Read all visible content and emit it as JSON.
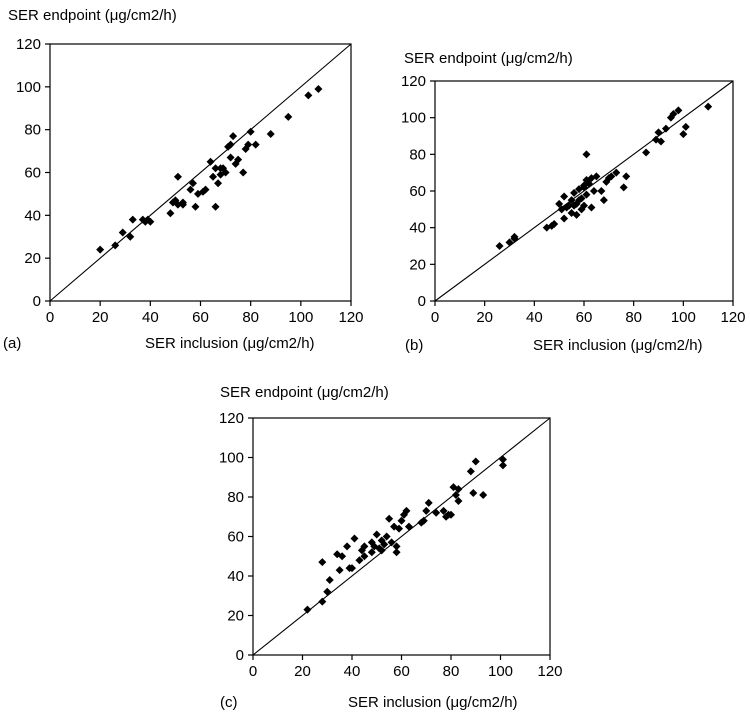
{
  "chart_data": [
    {
      "type": "scatter",
      "panel_label": "(a)",
      "ylabel": "SER endpoint (μg/cm2/h)",
      "xlabel": "SER inclusion (μg/cm2/h)",
      "xlim": [
        0,
        120
      ],
      "ylim": [
        0,
        120
      ],
      "xticks": [
        "0",
        "20",
        "40",
        "60",
        "80",
        "100",
        "120"
      ],
      "yticks": [
        "0",
        "20",
        "40",
        "60",
        "80",
        "100",
        "120"
      ],
      "grid": false,
      "identity_line": true,
      "points": [
        [
          20,
          24
        ],
        [
          26,
          26
        ],
        [
          29,
          32
        ],
        [
          32,
          30
        ],
        [
          33,
          38
        ],
        [
          37,
          38
        ],
        [
          38,
          37
        ],
        [
          39,
          38
        ],
        [
          40,
          37
        ],
        [
          48,
          41
        ],
        [
          49,
          46
        ],
        [
          50,
          47
        ],
        [
          51,
          45
        ],
        [
          51,
          58
        ],
        [
          53,
          46
        ],
        [
          53,
          45
        ],
        [
          56,
          52
        ],
        [
          57,
          55
        ],
        [
          58,
          44
        ],
        [
          59,
          50
        ],
        [
          61,
          51
        ],
        [
          62,
          52
        ],
        [
          64,
          65
        ],
        [
          65,
          58
        ],
        [
          66,
          44
        ],
        [
          66,
          62
        ],
        [
          67,
          55
        ],
        [
          68,
          62
        ],
        [
          68,
          59
        ],
        [
          69,
          62
        ],
        [
          70,
          60
        ],
        [
          71,
          72
        ],
        [
          72,
          73
        ],
        [
          72,
          67
        ],
        [
          73,
          77
        ],
        [
          74,
          64
        ],
        [
          75,
          66
        ],
        [
          77,
          60
        ],
        [
          78,
          71
        ],
        [
          79,
          73
        ],
        [
          80,
          79
        ],
        [
          82,
          73
        ],
        [
          88,
          78
        ],
        [
          95,
          86
        ],
        [
          103,
          96
        ],
        [
          107,
          99
        ]
      ]
    },
    {
      "type": "scatter",
      "panel_label": "(b)",
      "ylabel": "SER endpoint (μg/cm2/h)",
      "xlabel": "SER inclusion (μg/cm2/h)",
      "xlim": [
        0,
        120
      ],
      "ylim": [
        0,
        120
      ],
      "xticks": [
        "0",
        "20",
        "40",
        "60",
        "80",
        "100",
        "120"
      ],
      "yticks": [
        "0",
        "20",
        "40",
        "60",
        "80",
        "100",
        "120"
      ],
      "grid": false,
      "identity_line": true,
      "points": [
        [
          26,
          30
        ],
        [
          30,
          32
        ],
        [
          32,
          34
        ],
        [
          32,
          35
        ],
        [
          45,
          40
        ],
        [
          47,
          41
        ],
        [
          48,
          42
        ],
        [
          50,
          53
        ],
        [
          51,
          50
        ],
        [
          52,
          45
        ],
        [
          52,
          57
        ],
        [
          53,
          51
        ],
        [
          54,
          52
        ],
        [
          55,
          48
        ],
        [
          55,
          55
        ],
        [
          56,
          52
        ],
        [
          56,
          59
        ],
        [
          57,
          47
        ],
        [
          57,
          53
        ],
        [
          58,
          61
        ],
        [
          58,
          55
        ],
        [
          59,
          50
        ],
        [
          59,
          56
        ],
        [
          60,
          62
        ],
        [
          60,
          63
        ],
        [
          60,
          52
        ],
        [
          61,
          80
        ],
        [
          61,
          66
        ],
        [
          61,
          58
        ],
        [
          62,
          64
        ],
        [
          63,
          51
        ],
        [
          63,
          67
        ],
        [
          64,
          60
        ],
        [
          65,
          68
        ],
        [
          67,
          60
        ],
        [
          68,
          55
        ],
        [
          69,
          65
        ],
        [
          70,
          67
        ],
        [
          71,
          68
        ],
        [
          73,
          70
        ],
        [
          76,
          62
        ],
        [
          77,
          68
        ],
        [
          85,
          81
        ],
        [
          89,
          88
        ],
        [
          90,
          92
        ],
        [
          91,
          87
        ],
        [
          93,
          94
        ],
        [
          95,
          100
        ],
        [
          96,
          102
        ],
        [
          98,
          104
        ],
        [
          100,
          91
        ],
        [
          101,
          95
        ],
        [
          110,
          106
        ]
      ]
    },
    {
      "type": "scatter",
      "panel_label": "(c)",
      "ylabel": "SER endpoint (μg/cm2/h)",
      "xlabel": "SER inclusion (μg/cm2/h)",
      "xlim": [
        0,
        120
      ],
      "ylim": [
        0,
        120
      ],
      "xticks": [
        "0",
        "20",
        "40",
        "60",
        "80",
        "100",
        "120"
      ],
      "yticks": [
        "0",
        "20",
        "40",
        "60",
        "80",
        "100",
        "120"
      ],
      "grid": false,
      "identity_line": true,
      "points": [
        [
          22,
          23
        ],
        [
          28,
          27
        ],
        [
          28,
          47
        ],
        [
          30,
          32
        ],
        [
          31,
          38
        ],
        [
          34,
          51
        ],
        [
          35,
          43
        ],
        [
          36,
          50
        ],
        [
          38,
          55
        ],
        [
          39,
          44
        ],
        [
          40,
          44
        ],
        [
          41,
          59
        ],
        [
          43,
          48
        ],
        [
          44,
          53
        ],
        [
          45,
          50
        ],
        [
          45,
          55
        ],
        [
          48,
          52
        ],
        [
          48,
          57
        ],
        [
          49,
          55
        ],
        [
          50,
          61
        ],
        [
          51,
          54
        ],
        [
          52,
          53
        ],
        [
          52,
          58
        ],
        [
          53,
          56
        ],
        [
          54,
          60
        ],
        [
          55,
          69
        ],
        [
          56,
          57
        ],
        [
          57,
          65
        ],
        [
          58,
          52
        ],
        [
          58,
          55
        ],
        [
          59,
          64
        ],
        [
          60,
          68
        ],
        [
          61,
          71
        ],
        [
          62,
          73
        ],
        [
          63,
          65
        ],
        [
          68,
          67
        ],
        [
          69,
          68
        ],
        [
          70,
          73
        ],
        [
          71,
          77
        ],
        [
          74,
          72
        ],
        [
          77,
          73
        ],
        [
          78,
          70
        ],
        [
          79,
          71
        ],
        [
          80,
          71
        ],
        [
          81,
          85
        ],
        [
          82,
          81
        ],
        [
          83,
          84
        ],
        [
          83,
          78
        ],
        [
          88,
          93
        ],
        [
          89,
          82
        ],
        [
          90,
          98
        ],
        [
          93,
          81
        ],
        [
          101,
          96
        ],
        [
          101,
          99
        ]
      ]
    }
  ]
}
